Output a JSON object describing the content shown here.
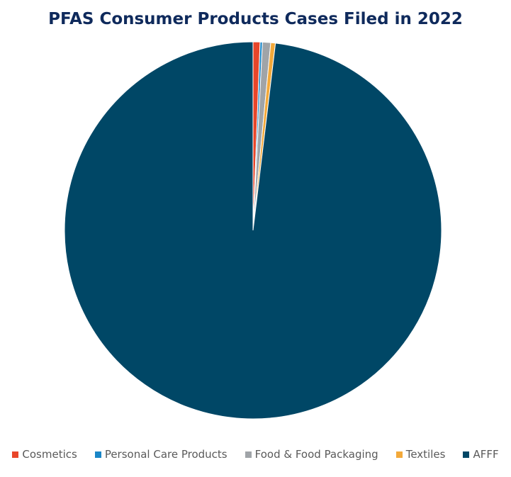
{
  "chart_data": {
    "type": "pie",
    "title": "PFAS Consumer Products Cases Filed in 2022",
    "slices": [
      {
        "name": "Cosmetics",
        "value": 0.6,
        "color": "#e8462a"
      },
      {
        "name": "Personal Care Products",
        "value": 0.2,
        "color": "#1a86c7"
      },
      {
        "name": "Food & Food Packaging",
        "value": 0.7,
        "color": "#a0a4a8"
      },
      {
        "name": "Textiles",
        "value": 0.4,
        "color": "#f3a93a"
      },
      {
        "name": "AFFF",
        "value": 98.1,
        "color": "#004766"
      }
    ],
    "legend_position": "bottom"
  }
}
